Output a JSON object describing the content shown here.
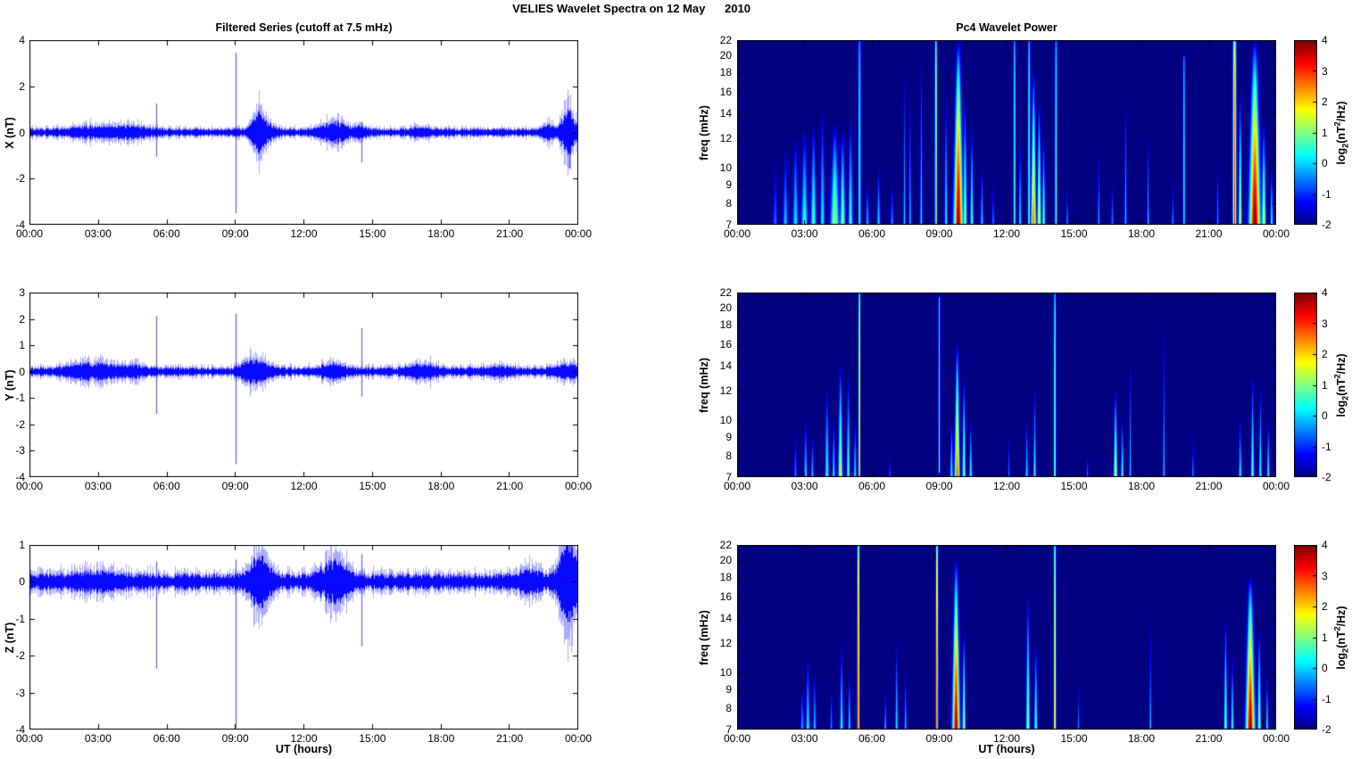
{
  "figure": {
    "title": "VELIES Wavelet Spectra on 12 May      2010",
    "left_title": "Filtered Series (cutoff at 7.5 mHz)",
    "right_title": "Pc4 Wavelet Power",
    "xlabel": "UT (hours)",
    "x_tick_labels": [
      "00:00",
      "03:00",
      "06:00",
      "09:00",
      "12:00",
      "15:00",
      "18:00",
      "21:00",
      "00:00"
    ],
    "line_color": "#0000FF",
    "colorbar": {
      "min": -2,
      "max": 4,
      "ticks": [
        "4",
        "3",
        "2",
        "1",
        "0",
        "-1",
        "-2"
      ],
      "tick_values": [
        4,
        3,
        2,
        1,
        0,
        -1,
        -2
      ],
      "colormap": "jet",
      "label": {
        "pre": "log",
        "sub": "2",
        "mid": "(nT",
        "sup": "2",
        "post": "/Hz)"
      }
    }
  },
  "chart_data": [
    {
      "id": "ts_x",
      "type": "line",
      "ylabel": "X (nT)",
      "ylim": [
        -4,
        4
      ],
      "y_ticks": [
        4,
        2,
        0,
        -2,
        -4
      ],
      "x_range_hours": [
        0,
        24
      ],
      "noise_band_nT": 0.12,
      "spikes": [
        {
          "t": 5.55,
          "up": 1.25,
          "dn": -1.05
        },
        {
          "t": 9.0,
          "up": 3.45,
          "dn": -3.5
        },
        {
          "t": 14.5,
          "up": 0.45,
          "dn": -1.3
        },
        {
          "t": 23.62,
          "up": 0.95,
          "dn": -1.55
        }
      ],
      "bursts": [
        {
          "t": 2.6,
          "a": 0.12,
          "w": 0.8
        },
        {
          "t": 4.4,
          "a": 0.15,
          "w": 0.7
        },
        {
          "t": 9.95,
          "a": 0.55,
          "w": 0.22
        },
        {
          "t": 10.3,
          "a": 0.25,
          "w": 0.3
        },
        {
          "t": 13.3,
          "a": 0.3,
          "w": 0.5
        },
        {
          "t": 14.5,
          "a": 0.15,
          "w": 0.2
        },
        {
          "t": 17.1,
          "a": 0.08,
          "w": 0.4
        },
        {
          "t": 22.6,
          "a": 0.25,
          "w": 0.2
        },
        {
          "t": 23.55,
          "a": 0.7,
          "w": 0.25
        }
      ]
    },
    {
      "id": "ts_y",
      "type": "line",
      "ylabel": "Y (nT)",
      "ylim": [
        -4,
        3
      ],
      "y_ticks": [
        3,
        2,
        1,
        0,
        -1,
        -2,
        -3,
        -4
      ],
      "x_range_hours": [
        0,
        24
      ],
      "noise_band_nT": 0.12,
      "spikes": [
        {
          "t": 5.55,
          "up": 2.1,
          "dn": -1.6
        },
        {
          "t": 9.0,
          "up": 2.2,
          "dn": -3.5
        },
        {
          "t": 14.5,
          "up": 1.65,
          "dn": -0.95
        }
      ],
      "bursts": [
        {
          "t": 2.6,
          "a": 0.18,
          "w": 0.8
        },
        {
          "t": 4.5,
          "a": 0.1,
          "w": 0.5
        },
        {
          "t": 9.6,
          "a": 0.25,
          "w": 0.3
        },
        {
          "t": 10.1,
          "a": 0.2,
          "w": 0.3
        },
        {
          "t": 13.2,
          "a": 0.18,
          "w": 0.4
        },
        {
          "t": 17.2,
          "a": 0.15,
          "w": 0.5
        },
        {
          "t": 20.5,
          "a": 0.08,
          "w": 0.5
        },
        {
          "t": 23.5,
          "a": 0.15,
          "w": 0.4
        }
      ]
    },
    {
      "id": "ts_z",
      "type": "line",
      "ylabel": "Z (nT)",
      "ylim": [
        -4,
        1
      ],
      "y_ticks": [
        1,
        0,
        -1,
        -2,
        -3,
        -4
      ],
      "x_range_hours": [
        0,
        24
      ],
      "noise_band_nT": 0.16,
      "spikes": [
        {
          "t": 5.55,
          "up": 0.55,
          "dn": -2.35
        },
        {
          "t": 9.0,
          "up": 0.6,
          "dn": -3.95
        },
        {
          "t": 14.5,
          "up": 0.75,
          "dn": -1.75
        }
      ],
      "bursts": [
        {
          "t": 3.0,
          "a": 0.1,
          "w": 0.8
        },
        {
          "t": 9.95,
          "a": 0.45,
          "w": 0.25
        },
        {
          "t": 10.3,
          "a": 0.2,
          "w": 0.3
        },
        {
          "t": 13.3,
          "a": 0.35,
          "w": 0.5
        },
        {
          "t": 21.9,
          "a": 0.15,
          "w": 0.4
        },
        {
          "t": 23.55,
          "a": 0.75,
          "w": 0.3
        }
      ]
    },
    {
      "id": "spec_x",
      "type": "heatmap",
      "ylabel": "freq (mHz)",
      "y_scale": "log",
      "ylim_mHz": [
        7,
        22
      ],
      "y_ticks": [
        22,
        20,
        18,
        16,
        14,
        12,
        10,
        9,
        8,
        7
      ],
      "clim_log2": [
        -2,
        4
      ],
      "colormap": "jet",
      "event_schema": "t=hours, f=top freq mHz, p=peak log2(nT2/Hz), w=width min, s=line|blob",
      "events": [
        {
          "t": 5.45,
          "f": 22,
          "p": 0.55,
          "w": 5,
          "s": "l"
        },
        {
          "t": 8.85,
          "f": 22,
          "p": 2.6,
          "w": 3.5,
          "s": "l"
        },
        {
          "t": 12.35,
          "f": 22,
          "p": 0.8,
          "w": 4,
          "s": "l"
        },
        {
          "t": 13.0,
          "f": 22,
          "p": 0.9,
          "w": 4,
          "s": "l"
        },
        {
          "t": 14.2,
          "f": 22,
          "p": 0.85,
          "w": 4,
          "s": "l"
        },
        {
          "t": 19.9,
          "f": 20,
          "p": 0.6,
          "w": 3.5,
          "s": "l"
        },
        {
          "t": 22.15,
          "f": 22,
          "p": 3.1,
          "w": 6,
          "s": "l"
        },
        {
          "t": 1.7,
          "f": 10,
          "p": -0.5,
          "w": 8,
          "s": "b"
        },
        {
          "t": 2.15,
          "f": 11,
          "p": 0,
          "w": 9,
          "s": "b"
        },
        {
          "t": 2.6,
          "f": 12,
          "p": 0.3,
          "w": 10,
          "s": "b"
        },
        {
          "t": 3.0,
          "f": 12.5,
          "p": 0.6,
          "w": 12,
          "s": "b"
        },
        {
          "t": 3.4,
          "f": 13,
          "p": 0.8,
          "w": 10,
          "s": "b"
        },
        {
          "t": 3.8,
          "f": 14,
          "p": 0.4,
          "w": 8,
          "s": "b"
        },
        {
          "t": 4.35,
          "f": 13,
          "p": 1.3,
          "w": 16,
          "s": "b"
        },
        {
          "t": 4.7,
          "f": 12.5,
          "p": 1.1,
          "w": 10,
          "s": "b"
        },
        {
          "t": 5.05,
          "f": 13.5,
          "p": 0.7,
          "w": 8,
          "s": "b"
        },
        {
          "t": 5.8,
          "f": 9,
          "p": 0,
          "w": 6,
          "s": "b"
        },
        {
          "t": 6.3,
          "f": 10,
          "p": 0.2,
          "w": 6,
          "s": "b"
        },
        {
          "t": 6.9,
          "f": 9,
          "p": -0.3,
          "w": 6,
          "s": "b"
        },
        {
          "t": 7.45,
          "f": 18,
          "p": 0.15,
          "w": 4,
          "s": "b"
        },
        {
          "t": 7.7,
          "f": 16,
          "p": 0.1,
          "w": 4,
          "s": "b"
        },
        {
          "t": 8.2,
          "f": 20,
          "p": 0.35,
          "w": 4,
          "s": "b"
        },
        {
          "t": 9.3,
          "f": 16,
          "p": 0.5,
          "w": 5,
          "s": "b"
        },
        {
          "t": 9.85,
          "f": 22,
          "p": 4,
          "w": 16,
          "s": "b"
        },
        {
          "t": 10.15,
          "f": 15,
          "p": 1.3,
          "w": 7,
          "s": "b"
        },
        {
          "t": 10.45,
          "f": 13,
          "p": 0.8,
          "w": 6,
          "s": "b"
        },
        {
          "t": 10.9,
          "f": 10,
          "p": 0.2,
          "w": 5,
          "s": "b"
        },
        {
          "t": 11.4,
          "f": 9,
          "p": -0.4,
          "w": 5,
          "s": "b"
        },
        {
          "t": 12.6,
          "f": 12,
          "p": 0.3,
          "w": 5,
          "s": "b"
        },
        {
          "t": 13.2,
          "f": 18,
          "p": 2.7,
          "w": 9,
          "s": "b"
        },
        {
          "t": 13.45,
          "f": 15,
          "p": 1.9,
          "w": 7,
          "s": "b"
        },
        {
          "t": 13.65,
          "f": 12,
          "p": 1.0,
          "w": 6,
          "s": "b"
        },
        {
          "t": 14.7,
          "f": 9,
          "p": -0.2,
          "w": 4,
          "s": "b"
        },
        {
          "t": 16.1,
          "f": 11,
          "p": -0.1,
          "w": 4,
          "s": "b"
        },
        {
          "t": 16.7,
          "f": 9,
          "p": -0.2,
          "w": 4,
          "s": "b"
        },
        {
          "t": 17.3,
          "f": 15,
          "p": 0.2,
          "w": 4,
          "s": "b"
        },
        {
          "t": 18.3,
          "f": 12,
          "p": 0.1,
          "w": 4,
          "s": "b"
        },
        {
          "t": 19.4,
          "f": 9,
          "p": -0.2,
          "w": 4,
          "s": "b"
        },
        {
          "t": 21.4,
          "f": 10,
          "p": -0.2,
          "w": 4,
          "s": "b"
        },
        {
          "t": 22.4,
          "f": 16,
          "p": 1.6,
          "w": 6,
          "s": "b"
        },
        {
          "t": 23.05,
          "f": 22,
          "p": 4,
          "w": 20,
          "s": "b"
        },
        {
          "t": 23.45,
          "f": 13,
          "p": 1.6,
          "w": 8,
          "s": "b"
        },
        {
          "t": 23.8,
          "f": 10,
          "p": 0.6,
          "w": 5,
          "s": "b"
        }
      ]
    },
    {
      "id": "spec_y",
      "type": "heatmap",
      "ylabel": "freq (mHz)",
      "y_scale": "log",
      "ylim_mHz": [
        7,
        22
      ],
      "y_ticks": [
        22,
        20,
        18,
        16,
        14,
        12,
        10,
        9,
        8,
        7
      ],
      "clim_log2": [
        -2,
        4
      ],
      "colormap": "jet",
      "event_schema": "t=hours, f=top freq mHz, p=peak log2(nT2/Hz), w=width min, s=line|blob",
      "events": [
        {
          "t": 5.45,
          "f": 22,
          "p": 2.9,
          "w": 3,
          "s": "l"
        },
        {
          "t": 9.0,
          "f": 22,
          "p": 1.1,
          "w": 3,
          "s": "l"
        },
        {
          "t": 14.15,
          "f": 22,
          "p": 1.3,
          "w": 3.5,
          "s": "l"
        },
        {
          "t": 2.6,
          "f": 9,
          "p": -0.3,
          "w": 5,
          "s": "b"
        },
        {
          "t": 3.05,
          "f": 10,
          "p": 0.3,
          "w": 6,
          "s": "b"
        },
        {
          "t": 3.35,
          "f": 9,
          "p": 0.1,
          "w": 5,
          "s": "b"
        },
        {
          "t": 4.0,
          "f": 12,
          "p": 0.7,
          "w": 7,
          "s": "b"
        },
        {
          "t": 4.3,
          "f": 10,
          "p": 0.5,
          "w": 5,
          "s": "b"
        },
        {
          "t": 4.6,
          "f": 14,
          "p": 1.6,
          "w": 8,
          "s": "b"
        },
        {
          "t": 4.95,
          "f": 13,
          "p": 0.9,
          "w": 6,
          "s": "b"
        },
        {
          "t": 5.25,
          "f": 10,
          "p": 0.4,
          "w": 5,
          "s": "b"
        },
        {
          "t": 6.8,
          "f": 8,
          "p": -0.6,
          "w": 4,
          "s": "b"
        },
        {
          "t": 9.55,
          "f": 10,
          "p": 0.6,
          "w": 5,
          "s": "b"
        },
        {
          "t": 9.8,
          "f": 16,
          "p": 2.9,
          "w": 9,
          "s": "b"
        },
        {
          "t": 10.1,
          "f": 13,
          "p": 1.4,
          "w": 6,
          "s": "b"
        },
        {
          "t": 10.4,
          "f": 10,
          "p": 0.7,
          "w": 5,
          "s": "b"
        },
        {
          "t": 12.1,
          "f": 9,
          "p": -0.4,
          "w": 4,
          "s": "b"
        },
        {
          "t": 12.9,
          "f": 10,
          "p": 0.3,
          "w": 5,
          "s": "b"
        },
        {
          "t": 13.25,
          "f": 12,
          "p": 0.6,
          "w": 5,
          "s": "b"
        },
        {
          "t": 15.6,
          "f": 8,
          "p": -0.4,
          "w": 4,
          "s": "b"
        },
        {
          "t": 16.85,
          "f": 12,
          "p": 1.6,
          "w": 7,
          "s": "b"
        },
        {
          "t": 17.15,
          "f": 10,
          "p": 0.8,
          "w": 5,
          "s": "b"
        },
        {
          "t": 17.5,
          "f": 14,
          "p": 0.2,
          "w": 3.5,
          "s": "b"
        },
        {
          "t": 19.0,
          "f": 18,
          "p": 0.15,
          "w": 3.5,
          "s": "b"
        },
        {
          "t": 20.3,
          "f": 9,
          "p": -0.3,
          "w": 4,
          "s": "b"
        },
        {
          "t": 22.4,
          "f": 10,
          "p": 0.5,
          "w": 5,
          "s": "b"
        },
        {
          "t": 22.95,
          "f": 13,
          "p": 0.95,
          "w": 6,
          "s": "b"
        },
        {
          "t": 23.3,
          "f": 12,
          "p": 0.7,
          "w": 5,
          "s": "b"
        },
        {
          "t": 23.65,
          "f": 10,
          "p": 0.5,
          "w": 5,
          "s": "b"
        }
      ]
    },
    {
      "id": "spec_z",
      "type": "heatmap",
      "ylabel": "freq (mHz)",
      "y_scale": "log",
      "ylim_mHz": [
        7,
        22
      ],
      "y_ticks": [
        22,
        20,
        18,
        16,
        14,
        12,
        10,
        9,
        8,
        7
      ],
      "clim_log2": [
        -2,
        4
      ],
      "colormap": "jet",
      "event_schema": "t=hours, f=top freq mHz, p=peak log2(nT2/Hz), w=width min, s=line|blob",
      "events": [
        {
          "t": 5.4,
          "f": 22,
          "p": 3.2,
          "w": 4,
          "s": "l"
        },
        {
          "t": 8.9,
          "f": 22,
          "p": 3.2,
          "w": 4,
          "s": "l"
        },
        {
          "t": 14.15,
          "f": 22,
          "p": 2.3,
          "w": 4,
          "s": "l"
        },
        {
          "t": 2.9,
          "f": 9,
          "p": -0.1,
          "w": 6,
          "s": "b"
        },
        {
          "t": 3.15,
          "f": 11,
          "p": 0.4,
          "w": 7,
          "s": "b"
        },
        {
          "t": 3.45,
          "f": 10,
          "p": 0.2,
          "w": 5,
          "s": "b"
        },
        {
          "t": 4.2,
          "f": 9,
          "p": -0.2,
          "w": 4,
          "s": "b"
        },
        {
          "t": 4.65,
          "f": 12,
          "p": 0.5,
          "w": 6,
          "s": "b"
        },
        {
          "t": 5.0,
          "f": 10,
          "p": 0.3,
          "w": 5,
          "s": "b"
        },
        {
          "t": 6.6,
          "f": 9,
          "p": 0,
          "w": 4,
          "s": "b"
        },
        {
          "t": 7.1,
          "f": 12,
          "p": 0.35,
          "w": 5,
          "s": "b"
        },
        {
          "t": 7.5,
          "f": 10,
          "p": 0.2,
          "w": 4,
          "s": "b"
        },
        {
          "t": 9.75,
          "f": 20,
          "p": 3.9,
          "w": 13,
          "s": "b"
        },
        {
          "t": 10.1,
          "f": 13,
          "p": 1.4,
          "w": 6,
          "s": "b"
        },
        {
          "t": 12.95,
          "f": 16,
          "p": 1.3,
          "w": 7,
          "s": "b"
        },
        {
          "t": 13.3,
          "f": 12,
          "p": 0.9,
          "w": 6,
          "s": "b"
        },
        {
          "t": 15.2,
          "f": 9,
          "p": -0.3,
          "w": 4,
          "s": "b"
        },
        {
          "t": 18.4,
          "f": 14,
          "p": 0.1,
          "w": 3.5,
          "s": "b"
        },
        {
          "t": 21.75,
          "f": 14,
          "p": 1.1,
          "w": 6,
          "s": "b"
        },
        {
          "t": 22.05,
          "f": 11,
          "p": 0.7,
          "w": 5,
          "s": "b"
        },
        {
          "t": 22.85,
          "f": 18,
          "p": 3.9,
          "w": 16,
          "s": "b"
        },
        {
          "t": 23.25,
          "f": 13,
          "p": 1.5,
          "w": 6,
          "s": "b"
        },
        {
          "t": 23.6,
          "f": 10,
          "p": 0.5,
          "w": 4,
          "s": "b"
        }
      ]
    }
  ]
}
